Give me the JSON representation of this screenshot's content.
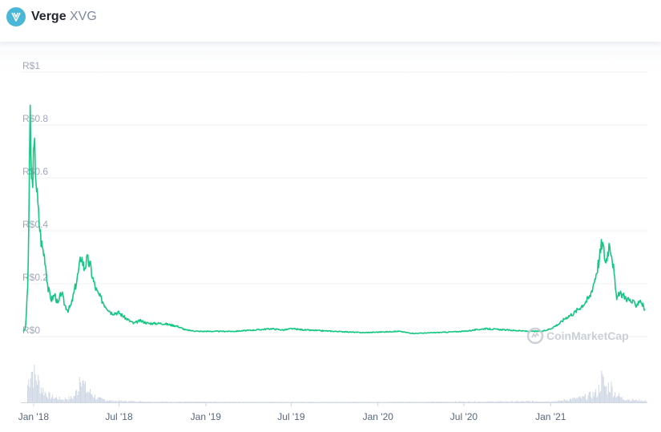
{
  "header": {
    "name": "Verge",
    "symbol": "XVG",
    "logo_color": "#4ab6d8"
  },
  "watermark": "CoinMarketCap",
  "colors": {
    "line": "#16c784",
    "volume": "#cfd6e4",
    "grid": "#eff2f5"
  },
  "chart_data": {
    "type": "line",
    "title": "",
    "xlabel": "",
    "ylabel": "",
    "x_ticks": [
      "Jan '18",
      "Jul '18",
      "Jan '19",
      "Jul '19",
      "Jan '20",
      "Jul '20",
      "Jan '21"
    ],
    "y_ticks": [
      "R$0",
      "R$0.2",
      "R$0.4",
      "R$0.6",
      "R$0.8",
      "R$1"
    ],
    "ylim": [
      0,
      1
    ],
    "grid": true,
    "series": [
      {
        "values_by_month": {
          "2017-12-10": 0.02,
          "2017-12-15": 0.03,
          "2017-12-20": 0.2,
          "2017-12-23": 0.55,
          "2017-12-25": 0.85,
          "2017-12-28": 0.55,
          "2018-01-03": 0.72,
          "2018-01-08": 0.55,
          "2018-01-12": 0.45,
          "2018-01-18": 0.35,
          "2018-01-25": 0.3,
          "2018-02-01": 0.18,
          "2018-02-08": 0.14,
          "2018-02-15": 0.16,
          "2018-02-22": 0.12,
          "2018-03-01": 0.17,
          "2018-03-08": 0.12,
          "2018-03-15": 0.1,
          "2018-03-22": 0.12,
          "2018-04-01": 0.2,
          "2018-04-08": 0.26,
          "2018-04-12": 0.31,
          "2018-04-18": 0.26,
          "2018-04-25": 0.29,
          "2018-05-01": 0.27,
          "2018-05-08": 0.21,
          "2018-05-15": 0.17,
          "2018-05-22": 0.15,
          "2018-06-01": 0.12,
          "2018-06-15": 0.09,
          "2018-07-01": 0.09,
          "2018-07-15": 0.07,
          "2018-08-01": 0.05,
          "2018-08-15": 0.06,
          "2018-09-01": 0.05,
          "2018-10-01": 0.05,
          "2018-11-01": 0.04,
          "2018-11-20": 0.025,
          "2018-12-15": 0.02,
          "2019-01-15": 0.02,
          "2019-03-01": 0.02,
          "2019-04-15": 0.025,
          "2019-05-20": 0.03,
          "2019-06-15": 0.025,
          "2019-07-01": 0.03,
          "2019-08-01": 0.025,
          "2019-10-01": 0.02,
          "2019-12-01": 0.015,
          "2020-02-15": 0.02,
          "2020-03-15": 0.012,
          "2020-05-01": 0.015,
          "2020-07-01": 0.02,
          "2020-08-15": 0.03,
          "2020-10-01": 0.025,
          "2020-11-15": 0.02,
          "2020-12-15": 0.02,
          "2021-01-01": 0.03,
          "2021-01-20": 0.05,
          "2021-02-01": 0.07,
          "2021-02-20": 0.09,
          "2021-03-10": 0.12,
          "2021-03-25": 0.15,
          "2021-04-05": 0.22,
          "2021-04-15": 0.3,
          "2021-04-20": 0.36,
          "2021-04-28": 0.28,
          "2021-05-06": 0.36,
          "2021-05-12": 0.3,
          "2021-05-20": 0.15,
          "2021-06-01": 0.16,
          "2021-06-15": 0.14,
          "2021-07-01": 0.12,
          "2021-07-10": 0.14,
          "2021-07-20": 0.1
        }
      }
    ],
    "volume_by_month": {
      "2017-12-10": 0.1,
      "2017-12-20": 0.5,
      "2017-12-25": 0.9,
      "2018-01-01": 0.7,
      "2018-01-08": 0.6,
      "2018-01-15": 0.4,
      "2018-01-25": 0.25,
      "2018-02-05": 0.15,
      "2018-03-01": 0.08,
      "2018-03-25": 0.12,
      "2018-04-05": 0.35,
      "2018-04-10": 1.0,
      "2018-04-15": 0.5,
      "2018-04-22": 0.3,
      "2018-05-01": 0.25,
      "2018-05-15": 0.1,
      "2018-06-15": 0.04,
      "2018-09-01": 0.02,
      "2019-01-01": 0.015,
      "2019-06-01": 0.01,
      "2020-01-01": 0.01,
      "2020-08-15": 0.02,
      "2021-01-15": 0.03,
      "2021-02-10": 0.08,
      "2021-03-10": 0.12,
      "2021-04-10": 0.25,
      "2021-04-18": 0.6,
      "2021-04-28": 0.35,
      "2021-05-06": 0.45,
      "2021-05-15": 0.25,
      "2021-06-01": 0.1,
      "2021-07-01": 0.05,
      "2021-07-20": 0.04
    }
  }
}
